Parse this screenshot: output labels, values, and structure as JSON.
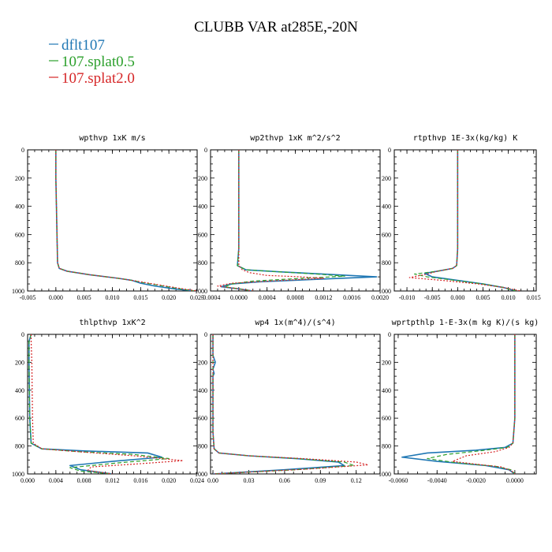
{
  "figure_title": "CLUBB VAR at285E,-20N",
  "legend": [
    {
      "label": "dflt107",
      "color": "#1f77b4"
    },
    {
      "label": "107.splat0.5",
      "color": "#2ca02c"
    },
    {
      "label": "107.splat2.0",
      "color": "#d62728"
    }
  ],
  "chart_data": [
    {
      "type": "line",
      "title": "wpthvp  1xK m/s",
      "xlim": [
        -0.005,
        0.025
      ],
      "ylim": [
        1000,
        0
      ],
      "xticks": [
        -0.005,
        0.0,
        0.005,
        0.01,
        0.015,
        0.02,
        0.025
      ],
      "xtick_labels": [
        "-0.005",
        "0.000",
        "0.005",
        "0.010",
        "0.015",
        "0.020",
        "0.025"
      ],
      "yticks": [
        0,
        200,
        400,
        600,
        800,
        1000
      ],
      "ytick_labels": [
        "0",
        "200",
        "400",
        "600",
        "800",
        "1000"
      ],
      "series": [
        {
          "name": "dflt107",
          "x": [
            0.0,
            0.0,
            0.0001,
            0.0002,
            0.0003,
            0.0006,
            0.002,
            0.006,
            0.011,
            0.0135,
            0.015,
            0.0175,
            0.021,
            0.0245
          ],
          "y": [
            0,
            200,
            400,
            600,
            800,
            840,
            860,
            885,
            910,
            925,
            945,
            965,
            985,
            1000
          ]
        },
        {
          "name": "107.splat0.5",
          "x": [
            0.0,
            0.0,
            0.0001,
            0.0002,
            0.0003,
            0.0006,
            0.002,
            0.006,
            0.011,
            0.0135,
            0.016,
            0.019,
            0.022,
            0.0245
          ],
          "y": [
            0,
            200,
            400,
            600,
            800,
            840,
            860,
            885,
            910,
            925,
            945,
            965,
            985,
            1000
          ]
        },
        {
          "name": "107.splat2.0",
          "x": [
            0.0,
            0.0,
            0.0001,
            0.0002,
            0.0003,
            0.0006,
            0.002,
            0.006,
            0.011,
            0.0135,
            0.0165,
            0.0195,
            0.0225,
            0.025
          ],
          "y": [
            0,
            200,
            400,
            600,
            800,
            840,
            860,
            885,
            910,
            925,
            945,
            965,
            985,
            1000
          ]
        }
      ]
    },
    {
      "type": "line",
      "title": "wp2thvp  1xK m^2/s^2",
      "xlim": [
        -0.0004,
        0.002
      ],
      "ylim": [
        1000,
        0
      ],
      "xticks": [
        -0.0004,
        0.0,
        0.0004,
        0.0008,
        0.0012,
        0.0016,
        0.002
      ],
      "xtick_labels": [
        "-0.0004",
        "0.0000",
        "0.0004",
        "0.0008",
        "0.0012",
        "0.0016",
        "0.0020"
      ],
      "yticks": [
        0,
        200,
        400,
        600,
        800,
        1000
      ],
      "ytick_labels": [
        "0",
        "200",
        "400",
        "600",
        "800",
        "1000"
      ],
      "series": [
        {
          "name": "dflt107",
          "x": [
            0.0,
            0.0,
            0.0,
            0.0,
            -2e-05,
            0.0001,
            0.0006,
            0.0012,
            0.00195,
            0.0012,
            0.0003,
            -0.0001,
            -0.00025,
            0.0,
            0.0002
          ],
          "y": [
            0,
            200,
            400,
            700,
            820,
            850,
            865,
            880,
            900,
            915,
            935,
            950,
            970,
            985,
            1000
          ]
        },
        {
          "name": "107.splat0.5",
          "x": [
            0.0,
            0.0,
            0.0,
            0.0,
            -2e-05,
            0.0001,
            0.0006,
            0.0011,
            0.0015,
            0.0009,
            0.0002,
            -0.0001,
            -0.0002,
            0.0,
            0.0002
          ],
          "y": [
            0,
            200,
            400,
            700,
            820,
            850,
            865,
            880,
            895,
            910,
            930,
            950,
            970,
            985,
            1000
          ]
        },
        {
          "name": "107.splat2.0",
          "x": [
            0.0,
            0.0,
            0.0,
            0.0,
            0.0,
            5e-05,
            0.00015,
            0.0004,
            0.0009,
            0.0012,
            0.0006,
            -0.0001,
            -0.0003,
            0.0,
            0.0002
          ],
          "y": [
            0,
            200,
            400,
            700,
            820,
            850,
            870,
            890,
            900,
            910,
            925,
            945,
            965,
            985,
            1000
          ]
        }
      ]
    },
    {
      "type": "line",
      "title": "rtpthvp  1E-3x(kg/kg) K",
      "xlim": [
        -0.0125,
        0.0155
      ],
      "ylim": [
        1000,
        0
      ],
      "xticks": [
        -0.01,
        -0.005,
        0.0,
        0.005,
        0.01,
        0.015
      ],
      "xtick_labels": [
        "-0.010",
        "-0.005",
        "0.000",
        "0.005",
        "0.010",
        "0.015"
      ],
      "yticks": [
        0,
        200,
        400,
        600,
        800,
        1000
      ],
      "ytick_labels": [
        "0",
        "200",
        "400",
        "600",
        "800",
        "1000"
      ],
      "series": [
        {
          "name": "dflt107",
          "x": [
            0.0,
            0.0,
            0.0,
            0.0,
            -0.0002,
            -0.001,
            -0.004,
            -0.0065,
            -0.005,
            0.0,
            0.005,
            0.009,
            0.0115
          ],
          "y": [
            0,
            200,
            400,
            700,
            820,
            840,
            860,
            875,
            900,
            925,
            950,
            975,
            1000
          ]
        },
        {
          "name": "107.splat0.5",
          "x": [
            0.0,
            0.0,
            0.0,
            0.0,
            -0.0002,
            -0.001,
            -0.004,
            -0.0085,
            -0.006,
            -0.0005,
            0.005,
            0.009,
            0.0115
          ],
          "y": [
            0,
            200,
            400,
            700,
            820,
            840,
            860,
            880,
            900,
            925,
            950,
            975,
            1000
          ]
        },
        {
          "name": "107.splat2.0",
          "x": [
            0.0,
            0.0,
            0.0,
            0.0,
            -0.0002,
            -0.001,
            -0.004,
            -0.006,
            -0.0095,
            -0.003,
            0.004,
            0.009,
            0.0125
          ],
          "y": [
            0,
            200,
            400,
            700,
            820,
            840,
            860,
            880,
            905,
            925,
            950,
            975,
            1000
          ]
        }
      ]
    },
    {
      "type": "line",
      "title": "thlpthvp  1xK^2",
      "xlim": [
        0.0,
        0.024
      ],
      "ylim": [
        1000,
        0
      ],
      "xticks": [
        0.0,
        0.004,
        0.008,
        0.012,
        0.016,
        0.02,
        0.024
      ],
      "xtick_labels": [
        "0.000",
        "0.004",
        "0.008",
        "0.012",
        "0.016",
        "0.020",
        "0.024"
      ],
      "yticks": [
        0,
        200,
        400,
        600,
        800,
        1000
      ],
      "ytick_labels": [
        "0",
        "200",
        "400",
        "600",
        "800",
        "1000"
      ],
      "series": [
        {
          "name": "dflt107",
          "x": [
            0.0005,
            0.0002,
            0.0002,
            0.0003,
            0.0005,
            0.002,
            0.008,
            0.017,
            0.019,
            0.012,
            0.006,
            0.0075,
            0.012
          ],
          "y": [
            0,
            50,
            200,
            600,
            780,
            820,
            835,
            850,
            880,
            910,
            940,
            970,
            1000
          ]
        },
        {
          "name": "107.splat0.5",
          "x": [
            0.0005,
            0.0002,
            0.0002,
            0.0003,
            0.0005,
            0.002,
            0.007,
            0.015,
            0.02,
            0.013,
            0.006,
            0.0075,
            0.012
          ],
          "y": [
            0,
            50,
            200,
            600,
            780,
            820,
            840,
            860,
            890,
            920,
            955,
            980,
            1000
          ]
        },
        {
          "name": "107.splat2.0",
          "x": [
            0.0005,
            0.0005,
            0.0006,
            0.0007,
            0.0008,
            0.002,
            0.007,
            0.015,
            0.022,
            0.015,
            0.009,
            0.0085,
            0.012
          ],
          "y": [
            0,
            50,
            200,
            600,
            780,
            820,
            840,
            870,
            905,
            930,
            950,
            975,
            1000
          ]
        }
      ]
    },
    {
      "type": "line",
      "title": "wp4  1x(m^4)/(s^4)",
      "xlim": [
        -0.002,
        0.14
      ],
      "ylim": [
        1000,
        0
      ],
      "xticks": [
        0.0,
        0.03,
        0.06,
        0.09,
        0.12
      ],
      "xtick_labels": [
        "0.00",
        "0.03",
        "0.06",
        "0.09",
        "0.12"
      ],
      "yticks": [
        0,
        200,
        400,
        600,
        800,
        1000
      ],
      "ytick_labels": [
        "0",
        "200",
        "400",
        "600",
        "800",
        "1000"
      ],
      "series": [
        {
          "name": "dflt107",
          "x": [
            0.0,
            0.0,
            0.002,
            0.0,
            0.001,
            0.0,
            0.0,
            0.001,
            0.005,
            0.03,
            0.07,
            0.105,
            0.11,
            0.06,
            0.0
          ],
          "y": [
            0,
            150,
            200,
            250,
            280,
            300,
            700,
            820,
            850,
            870,
            890,
            915,
            940,
            970,
            1000
          ]
        },
        {
          "name": "107.splat0.5",
          "x": [
            0.0,
            0.0,
            0.0,
            0.0,
            0.0,
            0.0,
            0.0,
            0.001,
            0.005,
            0.03,
            0.07,
            0.11,
            0.118,
            0.07,
            0.0
          ],
          "y": [
            0,
            150,
            200,
            250,
            280,
            300,
            700,
            820,
            850,
            870,
            890,
            915,
            940,
            970,
            1000
          ]
        },
        {
          "name": "107.splat2.0",
          "x": [
            0.0,
            0.0,
            0.0,
            0.0,
            0.0,
            0.0,
            0.0,
            0.001,
            0.005,
            0.03,
            0.075,
            0.12,
            0.13,
            0.08,
            0.0
          ],
          "y": [
            0,
            150,
            200,
            250,
            280,
            300,
            700,
            820,
            850,
            870,
            890,
            915,
            935,
            965,
            1000
          ]
        }
      ]
    },
    {
      "type": "line",
      "title": "wprtpthlp  1-E-3x(m kg K)/(s kg)",
      "xlim": [
        -0.0062,
        0.0011
      ],
      "ylim": [
        1000,
        0
      ],
      "xticks": [
        -0.006,
        -0.004,
        -0.002,
        0.0
      ],
      "xtick_labels": [
        "-0.0060",
        "-0.0040",
        "-0.0020",
        "0.0000"
      ],
      "yticks": [
        0,
        200,
        400,
        600,
        800,
        1000
      ],
      "ytick_labels": [
        "0",
        "200",
        "400",
        "600",
        "800",
        "1000"
      ],
      "series": [
        {
          "name": "dflt107",
          "x": [
            0.0,
            0.0,
            0.0,
            -0.0001,
            -0.0005,
            -0.002,
            -0.0045,
            -0.0058,
            -0.004,
            -0.0015,
            -0.0003,
            0.0
          ],
          "y": [
            0,
            200,
            600,
            780,
            810,
            830,
            850,
            880,
            910,
            940,
            970,
            1000
          ]
        },
        {
          "name": "107.splat0.5",
          "x": [
            0.0,
            0.0,
            0.0,
            -0.0001,
            -0.0004,
            -0.0015,
            -0.0035,
            -0.0045,
            -0.003,
            -0.001,
            -0.0002,
            0.0
          ],
          "y": [
            0,
            200,
            600,
            780,
            810,
            830,
            860,
            890,
            920,
            945,
            970,
            1000
          ]
        },
        {
          "name": "107.splat2.0",
          "x": [
            0.0,
            0.0,
            0.0,
            -0.0001,
            -0.0003,
            -0.001,
            -0.0025,
            -0.0032,
            -0.002,
            -0.0007,
            -0.0002,
            0.0
          ],
          "y": [
            0,
            200,
            600,
            780,
            810,
            840,
            870,
            910,
            930,
            950,
            975,
            1000
          ]
        }
      ]
    }
  ]
}
